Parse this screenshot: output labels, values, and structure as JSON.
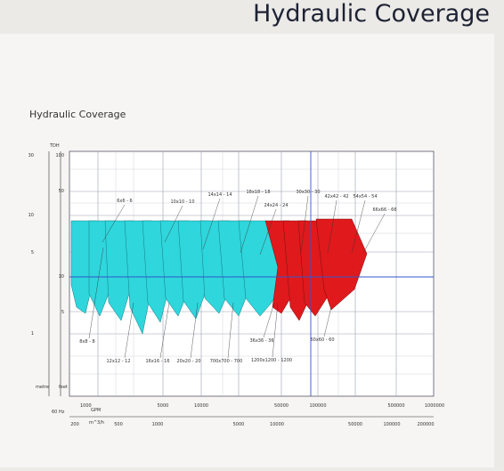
{
  "header": {
    "title": "Hydraulic Coverage"
  },
  "panel": {
    "title": "Hydraulic Coverage",
    "tdh_label": "TDH",
    "meter_ticks": [
      "30",
      "10",
      "5",
      "1"
    ],
    "feet_ticks": [
      "100",
      "50",
      "10",
      "5"
    ],
    "meter_unit": "metre",
    "feet_unit": "feet",
    "hz": "60 Hz",
    "gpm_ticks": [
      "1000",
      "5000",
      "10000",
      "50000",
      "100000",
      "500000",
      "1000000"
    ],
    "gpm_unit": "GPM",
    "m3h_ticks": [
      "200",
      "500",
      "1000",
      "5000",
      "10000",
      "50000",
      "100000",
      "200000"
    ],
    "m3h_unit": "m^3/h",
    "top_labels": [
      "6x6 - 6",
      "10x10 - 10",
      "14x14 - 14",
      "18x18 - 18",
      "24x24 - 24",
      "30x30 - 30",
      "42x42 - 42",
      "54x54 - 54",
      "66x66 - 66"
    ],
    "bottom_labels": [
      "8x8 - 8",
      "12x12 - 12",
      "16x16 - 16",
      "20x20 - 20",
      "700x700 - 700",
      "1200x1200 - 1200",
      "36x36 - 36",
      "60x60 - 60"
    ]
  }
}
